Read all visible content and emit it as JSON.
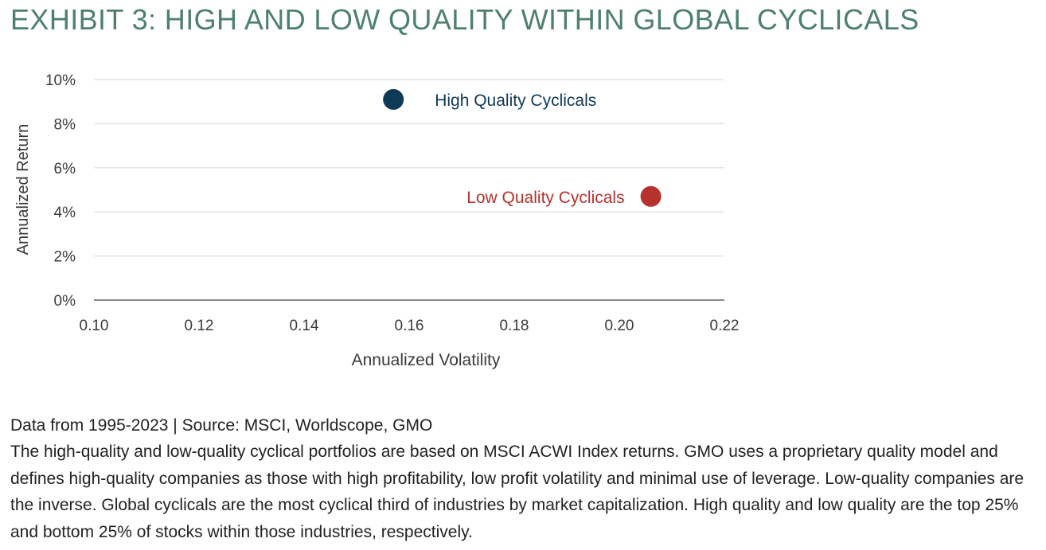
{
  "title": "EXHIBIT 3: HIGH AND LOW QUALITY WITHIN GLOBAL CYCLICALS",
  "colors": {
    "title": "#4e8070",
    "high_quality": "#0f3a57",
    "low_quality": "#b8322d",
    "axis_text": "#3a3a3a",
    "gridline": "#e4e4e4",
    "axis_line": "#8a8a8a"
  },
  "chart_data": {
    "type": "scatter",
    "xlabel": "Annualized Volatility",
    "ylabel": "Annualized Return",
    "xlim": [
      0.1,
      0.22
    ],
    "ylim": [
      0,
      10
    ],
    "x_ticks": [
      "0.10",
      "0.12",
      "0.14",
      "0.16",
      "0.18",
      "0.20",
      "0.22"
    ],
    "y_ticks": [
      "0%",
      "2%",
      "4%",
      "6%",
      "8%",
      "10%"
    ],
    "grid": "horizontal",
    "series": [
      {
        "name": "High Quality Cyclicals",
        "x": 0.157,
        "y": 9.1,
        "color": "#0f3a57",
        "label_side": "right"
      },
      {
        "name": "Low Quality Cyclicals",
        "x": 0.206,
        "y": 4.7,
        "color": "#b8322d",
        "label_side": "left"
      }
    ]
  },
  "notes": {
    "source": "Data from 1995-2023 | Source: MSCI, Worldscope, GMO",
    "description": "The high-quality and low-quality cyclical portfolios are based on MSCI ACWI Index returns. GMO uses a proprietary quality model and defines high-quality companies as those with high profitability, low profit volatility and minimal use of leverage. Low-quality companies are the inverse. Global cyclicals are the most cyclical third of industries by market capitalization. High quality and low quality are the top 25% and bottom 25% of stocks within those industries, respectively."
  }
}
